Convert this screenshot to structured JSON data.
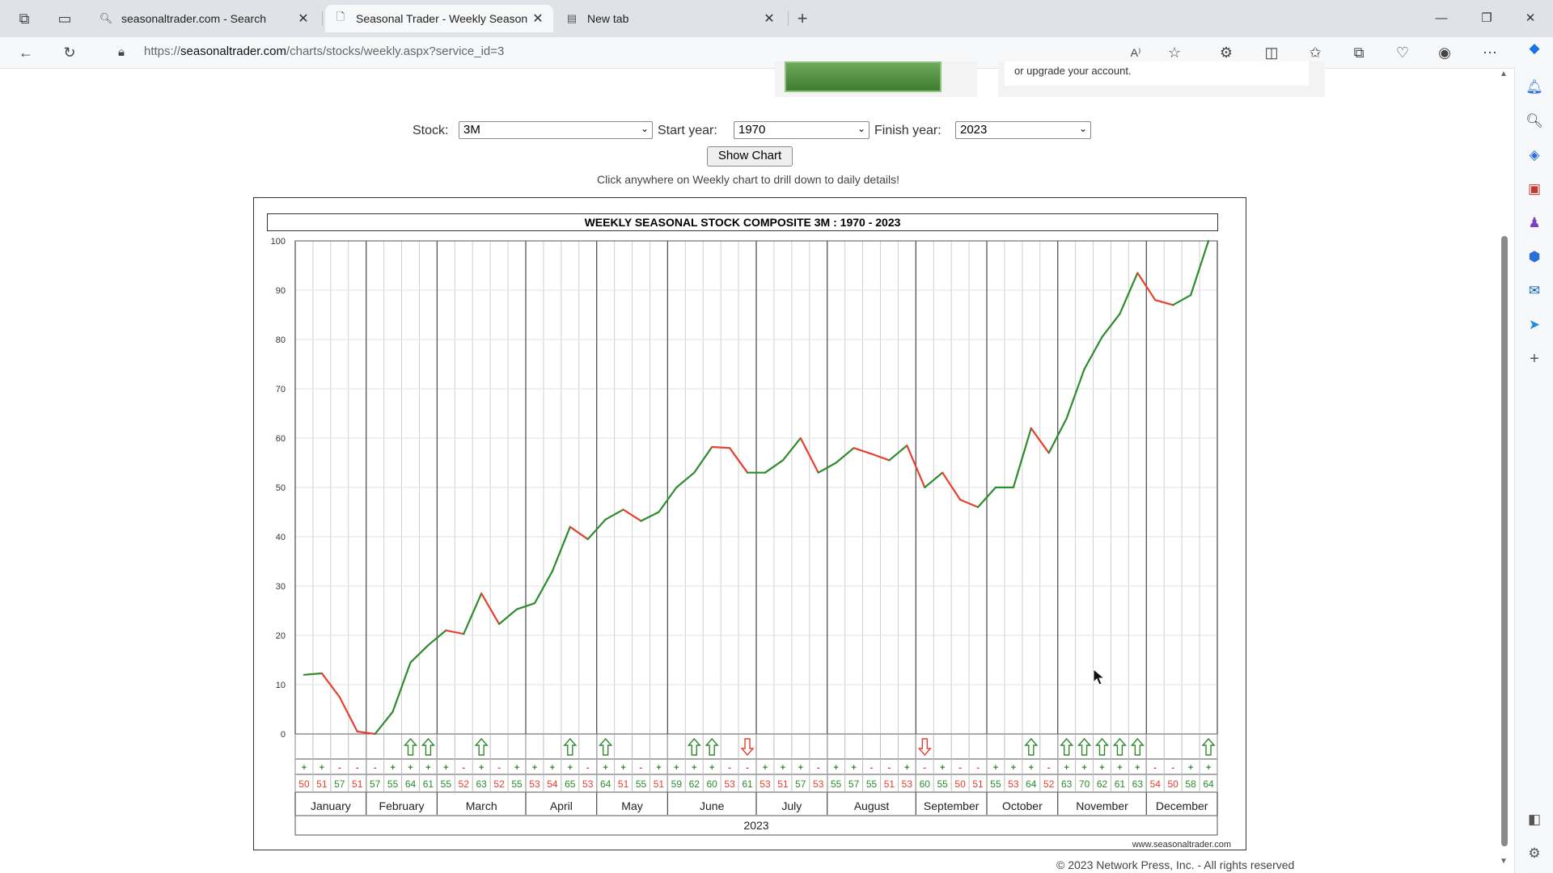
{
  "browser": {
    "tabs": [
      {
        "label": "seasonaltrader.com - Search",
        "icon": "search-icon"
      },
      {
        "label": "Seasonal Trader - Weekly Season",
        "icon": "page-icon"
      },
      {
        "label": "New tab",
        "icon": "newtab-icon"
      }
    ],
    "url_prefix": "https://",
    "url_domain": "seasonaltrader.com",
    "url_path": "/charts/stocks/weekly.aspx?service_id=3"
  },
  "ad": {
    "right_text": "or upgrade your account."
  },
  "controls": {
    "stock_label": "Stock:",
    "stock_value": "3M",
    "start_label": "Start year:",
    "start_value": "1970",
    "finish_label": "Finish year:",
    "finish_value": "2023",
    "show_button": "Show Chart",
    "hint": "Click anywhere on Weekly chart to drill down to daily details!"
  },
  "chart_data": {
    "type": "line",
    "title": "WEEKLY SEASONAL STOCK COMPOSITE 3M : 1970 - 2023",
    "ylim": [
      0,
      100
    ],
    "yticks": [
      0,
      10,
      20,
      30,
      40,
      50,
      60,
      70,
      80,
      90,
      100
    ],
    "months": [
      {
        "name": "January",
        "weeks": 4
      },
      {
        "name": "February",
        "weeks": 4
      },
      {
        "name": "March",
        "weeks": 5
      },
      {
        "name": "April",
        "weeks": 4
      },
      {
        "name": "May",
        "weeks": 4
      },
      {
        "name": "June",
        "weeks": 5
      },
      {
        "name": "July",
        "weeks": 4
      },
      {
        "name": "August",
        "weeks": 5
      },
      {
        "name": "September",
        "weeks": 4
      },
      {
        "name": "October",
        "weeks": 4
      },
      {
        "name": "November",
        "weeks": 5
      },
      {
        "name": "December",
        "weeks": 4
      }
    ],
    "year_label": "2023",
    "values": [
      12,
      12.3,
      7.5,
      0.5,
      0,
      4.5,
      14.5,
      18,
      21,
      20.3,
      28.5,
      22.3,
      25.3,
      26.5,
      33,
      42,
      39.5,
      43.5,
      45.5,
      43.2,
      45,
      50,
      53,
      58.2,
      58,
      53,
      53,
      55.5,
      60,
      53,
      55,
      58,
      56.8,
      55.5,
      58.5,
      50,
      53,
      47.5,
      46,
      50,
      50,
      62,
      57,
      64,
      74,
      80.5,
      85.2,
      93.5,
      88,
      87,
      89,
      100
    ],
    "percentages": [
      50,
      51,
      57,
      51,
      57,
      55,
      64,
      61,
      55,
      52,
      63,
      52,
      55,
      53,
      54,
      65,
      53,
      64,
      51,
      55,
      51,
      59,
      62,
      60,
      53,
      61,
      53,
      51,
      57,
      53,
      55,
      57,
      55,
      51,
      53,
      60,
      55,
      50,
      51,
      55,
      53,
      64,
      52,
      63,
      70,
      62,
      61,
      63,
      54,
      50,
      58,
      64
    ],
    "arrows": {
      "up": [
        6,
        7,
        10,
        15,
        17,
        22,
        23,
        41,
        43,
        44,
        45,
        46,
        47,
        51
      ],
      "down": [
        25,
        35
      ]
    },
    "colors": {
      "up": "#2e8b2e",
      "down": "#e8402e"
    },
    "watermark": "www.seasonaltrader.com"
  },
  "footer": "© 2023 Network Press, Inc. - All rights reserved"
}
